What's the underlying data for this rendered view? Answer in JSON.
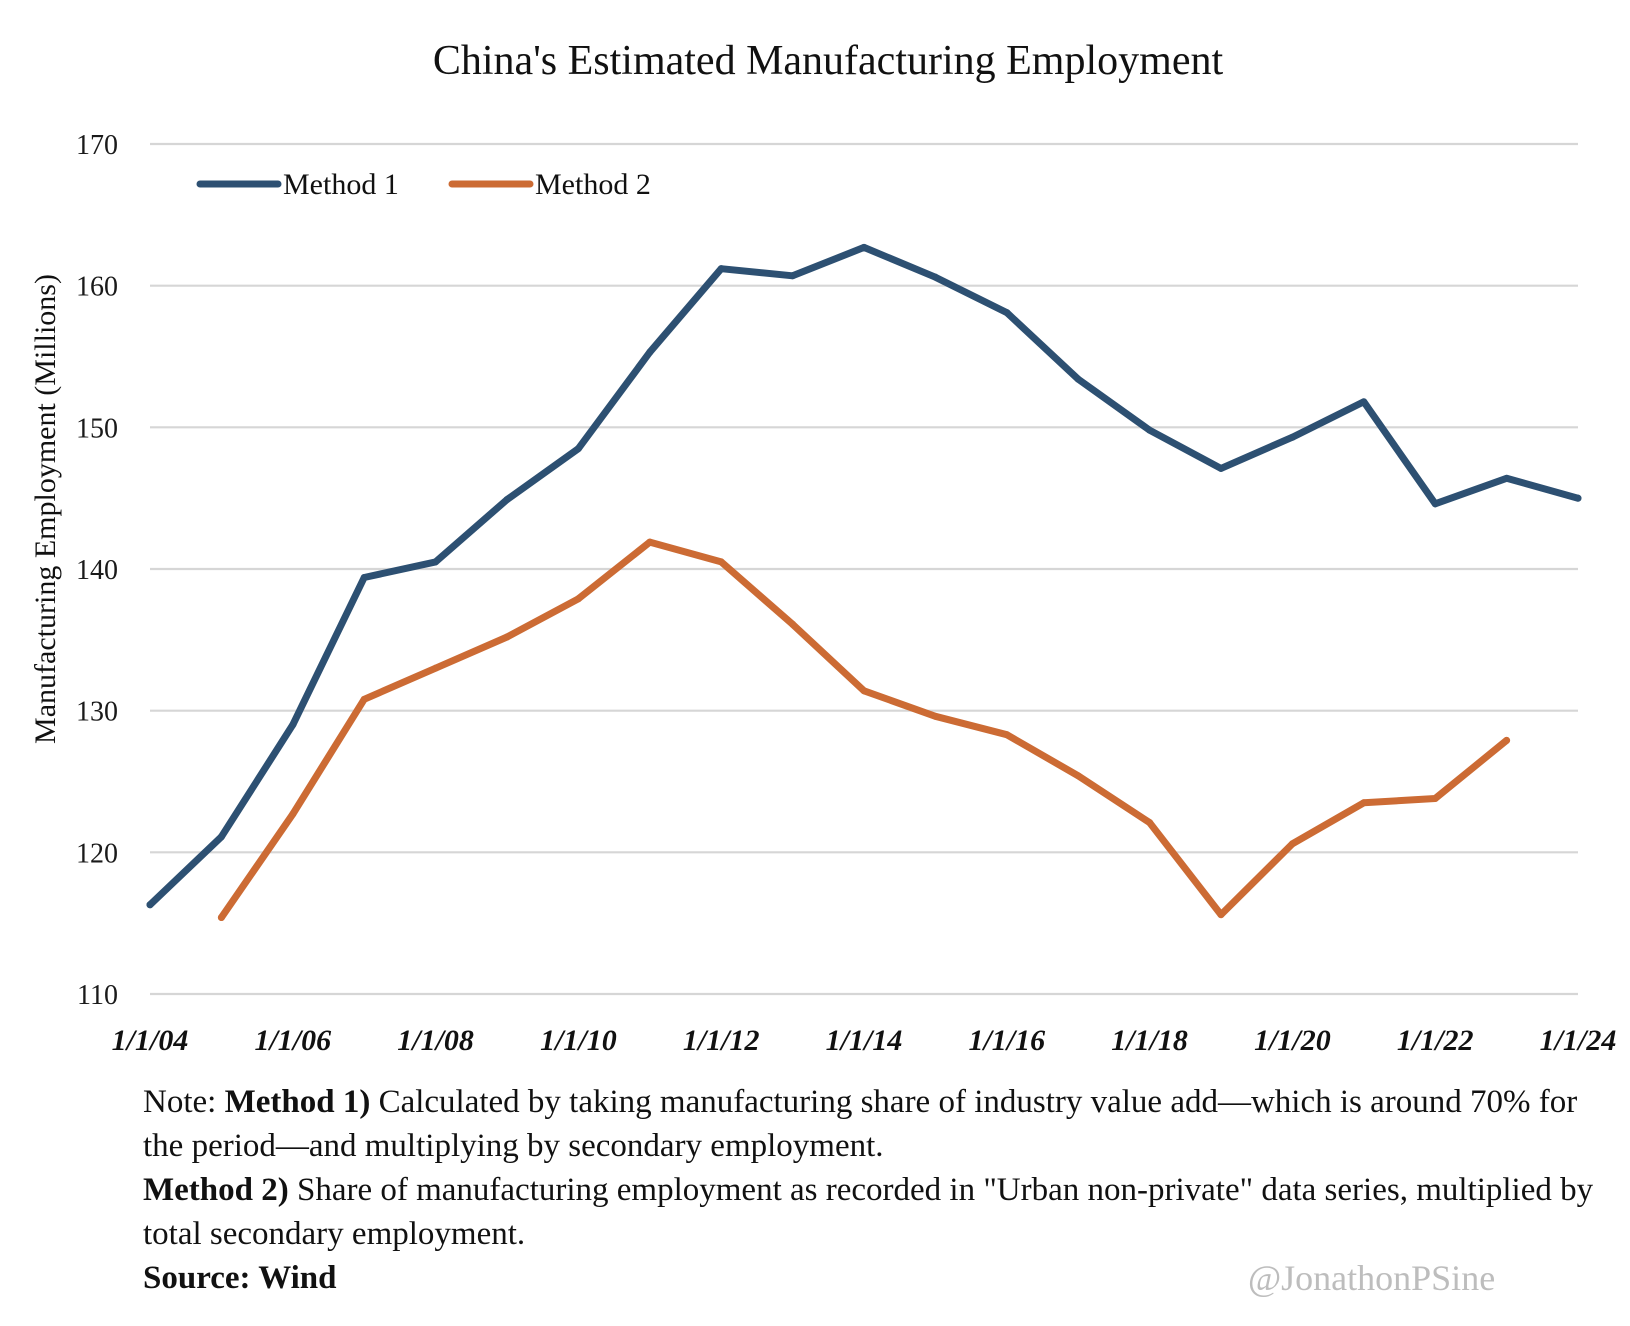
{
  "chart_data": {
    "type": "line",
    "title": "China's Estimated Manufacturing Employment",
    "xlabel": "",
    "ylabel": "Manufacturing Employment (Millions)",
    "x": [
      "1/1/04",
      "1/1/05",
      "1/1/06",
      "1/1/07",
      "1/1/08",
      "1/1/09",
      "1/1/10",
      "1/1/11",
      "1/1/12",
      "1/1/13",
      "1/1/14",
      "1/1/15",
      "1/1/16",
      "1/1/17",
      "1/1/18",
      "1/1/19",
      "1/1/20",
      "1/1/21",
      "1/1/22",
      "1/1/23",
      "1/1/24"
    ],
    "x_tick_labels": [
      "1/1/04",
      "1/1/06",
      "1/1/08",
      "1/1/10",
      "1/1/12",
      "1/1/14",
      "1/1/16",
      "1/1/18",
      "1/1/20",
      "1/1/22",
      "1/1/24"
    ],
    "ylim": [
      110,
      170
    ],
    "y_ticks": [
      110,
      120,
      130,
      140,
      150,
      160,
      170
    ],
    "grid": true,
    "legend_position": "top-left",
    "series": [
      {
        "name": "Method 1",
        "color": "#2d5072",
        "values": [
          116.3,
          121.1,
          129.0,
          139.4,
          140.5,
          144.9,
          148.5,
          155.3,
          161.2,
          160.7,
          162.7,
          160.6,
          158.1,
          153.4,
          149.8,
          147.1,
          149.3,
          151.8,
          144.6,
          146.4,
          145.0
        ]
      },
      {
        "name": "Method 2",
        "color": "#cc6b34",
        "values": [
          null,
          115.4,
          122.7,
          130.8,
          133.0,
          135.2,
          137.9,
          141.9,
          140.5,
          136.1,
          131.4,
          129.6,
          128.3,
          125.4,
          122.1,
          115.6,
          120.6,
          123.5,
          123.8,
          127.9,
          null
        ]
      }
    ]
  },
  "notes": {
    "note_prefix": "Note: ",
    "method1_label": "Method 1)",
    "method1_text": " Calculated by taking manufacturing share of industry value add—which is around 70% for the period—and multiplying by secondary employment.",
    "method2_label": "Method 2)",
    "method2_text": " Share of manufacturing employment as recorded in \"Urban non-private\" data series, multiplied by total secondary employment.",
    "source": "Source: Wind"
  },
  "watermark": "@JonathonPSine"
}
